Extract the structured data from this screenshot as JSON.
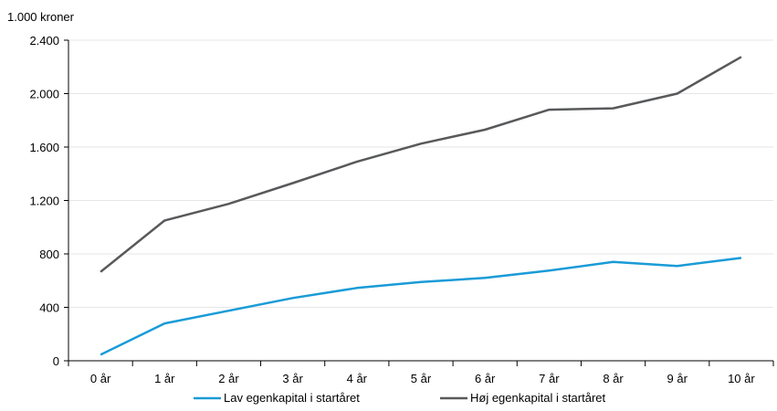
{
  "chart_data": {
    "type": "line",
    "unit_label": "1.000 kroner",
    "categories": [
      "0 år",
      "1 år",
      "2 år",
      "3 år",
      "4 år",
      "5 år",
      "6 år",
      "7 år",
      "8 år",
      "9 år",
      "10 år"
    ],
    "ylim": [
      0,
      2400
    ],
    "yticks": [
      0,
      400,
      800,
      1200,
      1600,
      2000,
      2400
    ],
    "ytick_labels": [
      "0",
      "400",
      "800",
      "1.200",
      "1.600",
      "2.000",
      "2.400"
    ],
    "grid": true,
    "legend_position": "bottom",
    "series": [
      {
        "name": "Lav egenkapital i startåret",
        "color": "#1a9bd7",
        "values": [
          45,
          280,
          375,
          470,
          545,
          590,
          620,
          675,
          740,
          710,
          770
        ]
      },
      {
        "name": "Høj egenkapital i startåret",
        "color": "#58595b",
        "values": [
          665,
          1050,
          1175,
          1330,
          1490,
          1625,
          1730,
          1880,
          1890,
          2000,
          2275
        ]
      }
    ]
  }
}
